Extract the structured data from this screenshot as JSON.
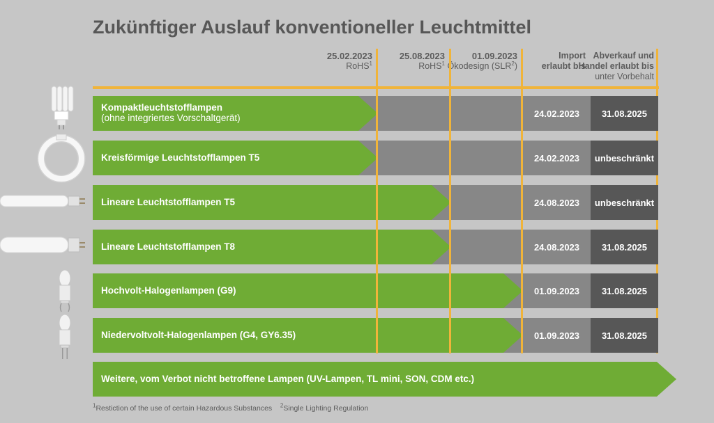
{
  "title": "Zukünftiger Auslauf konventioneller Leuchtmittel",
  "columns": [
    {
      "date": "25.02.2023",
      "label": "RoHS",
      "sup": "1"
    },
    {
      "date": "25.08.2023",
      "label": "RoHS",
      "sup": "1"
    },
    {
      "date": "01.09.2023",
      "label": "Ökodesign (SLR",
      "sup": "2",
      "suffix": ")"
    }
  ],
  "import_header": {
    "line1": "Import",
    "line2": "erlaubt bis"
  },
  "sale_header": {
    "line1": "Abverkauf und",
    "line2": "Handel erlaubt bis",
    "line3": "unter Vorbehalt"
  },
  "chart_data": {
    "type": "table",
    "title": "Zukünftiger Auslauf konventioneller Leuchtmittel",
    "milestones": [
      "25.02.2023",
      "25.08.2023",
      "01.09.2023"
    ],
    "rows": [
      {
        "label": "Kompaktleuchtstofflampen",
        "sublabel": "(ohne integriertes Vorschaltgerät)",
        "end_milestone": 1,
        "import_until": "24.02.2023",
        "sale_until": "31.08.2025",
        "icon": "compact-fluorescent-lamp-icon"
      },
      {
        "label": "Kreisförmige Leuchtstofflampen T5",
        "sublabel": "",
        "end_milestone": 1,
        "import_until": "24.02.2023",
        "sale_until": "unbeschränkt",
        "icon": "circular-fluorescent-lamp-icon"
      },
      {
        "label": "Lineare Leuchtstofflampen T5",
        "sublabel": "",
        "end_milestone": 2,
        "import_until": "24.08.2023",
        "sale_until": "unbeschränkt",
        "icon": "linear-tube-t5-icon"
      },
      {
        "label": "Lineare Leuchtstofflampen T8",
        "sublabel": "",
        "end_milestone": 2,
        "import_until": "24.08.2023",
        "sale_until": "31.08.2025",
        "icon": "linear-tube-t8-icon"
      },
      {
        "label": "Hochvolt-Halogenlampen (G9)",
        "sublabel": "",
        "end_milestone": 3,
        "import_until": "01.09.2023",
        "sale_until": "31.08.2025",
        "icon": "g9-halogen-lamp-icon"
      },
      {
        "label": "Niedervoltvolt-Halogenlampen (G4, GY6.35)",
        "sublabel": "",
        "end_milestone": 3,
        "import_until": "01.09.2023",
        "sale_until": "31.08.2025",
        "icon": "g4-halogen-lamp-icon"
      }
    ],
    "extra_row": {
      "label": "Weitere, vom Verbot nicht betroffene Lampen (UV-Lampen, TL mini, SON, CDM etc.)"
    }
  },
  "colors": {
    "green": "#6fac35",
    "gray_mid": "#878787",
    "gray_dark": "#575757",
    "orange": "#f0b43a"
  },
  "footnotes": {
    "n1_sup": "1",
    "n1": "Restiction of the use of certain Hazardous Substances",
    "n2_sup": "2",
    "n2": "Single Lighting Regulation"
  }
}
